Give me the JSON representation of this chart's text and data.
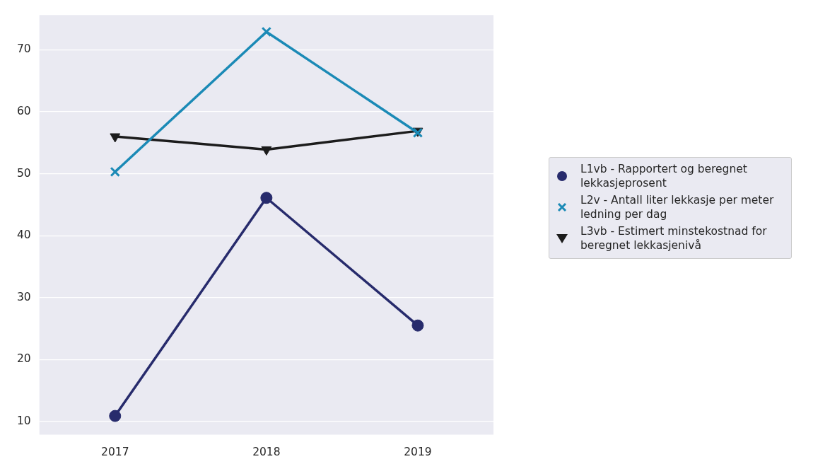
{
  "chart_data": {
    "type": "line",
    "categories": [
      "2017",
      "2018",
      "2019"
    ],
    "series": [
      {
        "name": "L1vb - Rapportert og beregnet lekkasjeprosent",
        "color": "#272b6c",
        "marker": "circle",
        "values": [
          10.9,
          46.1,
          25.5
        ]
      },
      {
        "name": "L2v - Antall liter lekkasje per meter ledning per dag",
        "color": "#1b8ab6",
        "marker": "cross",
        "values": [
          50.3,
          72.9,
          56.6
        ]
      },
      {
        "name": "L3vb - Estimert minstekostnad for beregnet lekkasjenivå",
        "color": "#1c1c1c",
        "marker": "triangle_down",
        "values": [
          56.0,
          53.9,
          56.9
        ]
      }
    ],
    "ylim": [
      7.9,
      75.6
    ],
    "yticks": [
      10,
      20,
      30,
      40,
      50,
      60,
      70
    ],
    "grid": "y",
    "legend": "right"
  }
}
